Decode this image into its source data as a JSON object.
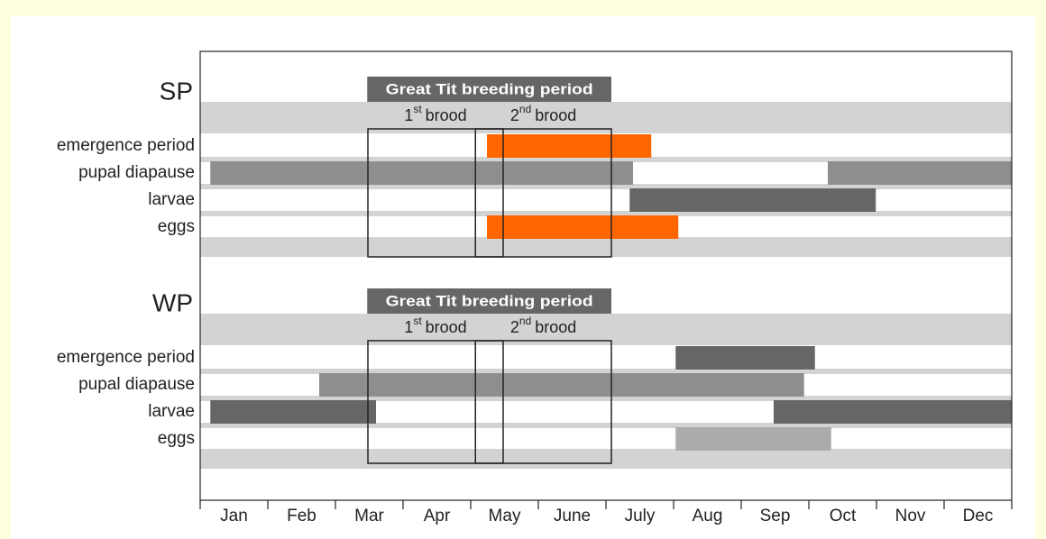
{
  "chart_data": {
    "type": "gantt",
    "categories": [
      "Jan",
      "Feb",
      "Mar",
      "Apr",
      "May",
      "June",
      "July",
      "Aug",
      "Sep",
      "Oct",
      "Nov",
      "Dec"
    ],
    "xlim": [
      0,
      12
    ],
    "xticks": [
      0,
      1,
      2,
      3,
      4,
      5,
      6,
      7,
      8,
      9,
      10,
      11,
      12
    ],
    "panels": [
      {
        "label": "SP",
        "header": {
          "text": "Great Tit breeding period",
          "start": 2.47,
          "end": 6.08
        },
        "broods": [
          {
            "ordinal": "1",
            "suffix": "st",
            "word": "brood",
            "start": 2.48,
            "end": 4.48
          },
          {
            "ordinal": "2",
            "suffix": "nd",
            "word": "brood",
            "start": 4.07,
            "end": 6.08
          }
        ],
        "rows": [
          {
            "name": "emergence period",
            "bars": [
              {
                "start": 4.24,
                "end": 6.67,
                "color": "#ff6600"
              }
            ]
          },
          {
            "name": "pupal diapause",
            "bars": [
              {
                "start": 0.15,
                "end": 6.4,
                "color": "#8e8e8e"
              },
              {
                "start": 9.28,
                "end": 12,
                "color": "#8e8e8e"
              }
            ]
          },
          {
            "name": "larvae",
            "bars": [
              {
                "start": 6.35,
                "end": 9.99,
                "color": "#666666"
              }
            ]
          },
          {
            "name": "eggs",
            "bars": [
              {
                "start": 4.24,
                "end": 7.07,
                "color": "#ff6600"
              }
            ]
          }
        ]
      },
      {
        "label": "WP",
        "header": {
          "text": "Great Tit breeding period",
          "start": 2.47,
          "end": 6.08
        },
        "broods": [
          {
            "ordinal": "1",
            "suffix": "st",
            "word": "brood",
            "start": 2.48,
            "end": 4.48
          },
          {
            "ordinal": "2",
            "suffix": "nd",
            "word": "brood",
            "start": 4.07,
            "end": 6.08
          }
        ],
        "rows": [
          {
            "name": "emergence period",
            "bars": [
              {
                "start": 7.03,
                "end": 9.09,
                "color": "#666666"
              }
            ]
          },
          {
            "name": "pupal diapause",
            "bars": [
              {
                "start": 1.76,
                "end": 8.93,
                "color": "#8e8e8e"
              }
            ]
          },
          {
            "name": "larvae",
            "bars": [
              {
                "start": 0.15,
                "end": 2.6,
                "color": "#666666"
              },
              {
                "start": 8.48,
                "end": 12,
                "color": "#666666"
              }
            ]
          },
          {
            "name": "eggs",
            "bars": [
              {
                "start": 7.03,
                "end": 9.33,
                "color": "#ababab"
              }
            ]
          }
        ]
      }
    ]
  }
}
